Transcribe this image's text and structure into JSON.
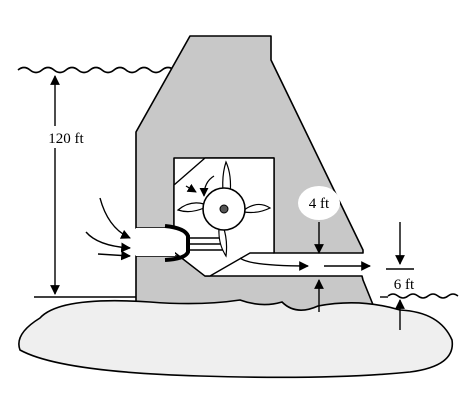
{
  "labels": {
    "upstream_depth": "120 ft",
    "pipe_height": "4 ft",
    "tailwater_depth": "6 ft"
  },
  "colors": {
    "dam_fill": "#c8c8c8",
    "ground_fill": "#efefef",
    "stroke": "#000000",
    "label_bubble": "#ffffff"
  }
}
